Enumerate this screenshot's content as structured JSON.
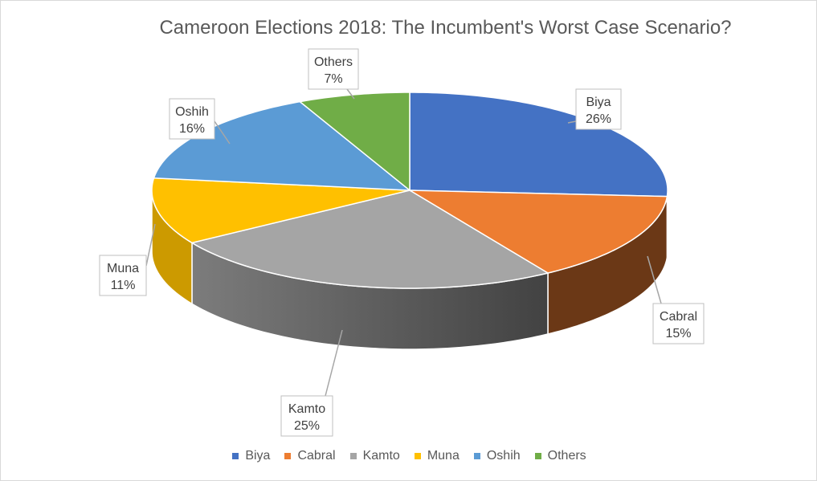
{
  "chart_data": {
    "type": "pie",
    "style": "3d",
    "title": "Cameroon Elections 2018: The Incumbent's Worst Case Scenario?",
    "categories": [
      "Biya",
      "Cabral",
      "Kamto",
      "Muna",
      "Oshih",
      "Others"
    ],
    "values": [
      26,
      15,
      25,
      11,
      16,
      7
    ],
    "data_labels": [
      "26%",
      "15%",
      "25%",
      "11%",
      "16%",
      "7%"
    ],
    "colors": [
      "#4472c4",
      "#ed7d31",
      "#a5a5a5",
      "#ffc000",
      "#5b9bd5",
      "#70ad47"
    ],
    "legend_position": "bottom"
  }
}
